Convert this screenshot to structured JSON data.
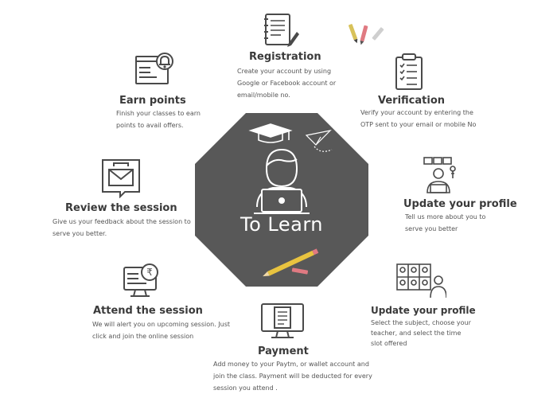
{
  "center": {
    "title": "To Learn",
    "fill": "#585858"
  },
  "steps": [
    {
      "id": "registration",
      "title": "Registration",
      "description": "Create your account by using Google or Facebook account or email/mobile no.",
      "icon": "notepad-pen-icon"
    },
    {
      "id": "verification",
      "title": "Verification",
      "description": "Verify your account by entering the OTP sent to your email or mobile No",
      "icon": "checklist-clipboard-icon"
    },
    {
      "id": "update-profile-1",
      "title": "Update your profile",
      "description": "Tell us more about you to serve you better",
      "icon": "user-laptop-icon"
    },
    {
      "id": "update-profile-2",
      "title": "Update your profile",
      "description": "Select the subject, choose your teacher, and select the time slot offered",
      "icon": "video-call-grid-icon"
    },
    {
      "id": "payment",
      "title": "Payment",
      "description": "Add money to your Paytm, or wallet account and join the class. Payment will be deducted  for every session you attend .",
      "icon": "monitor-list-icon"
    },
    {
      "id": "attend-session",
      "title": "Attend the session",
      "description": "We will alert you on upcoming session. Just click and join the online session",
      "icon": "monitor-rupee-icon"
    },
    {
      "id": "review-session",
      "title": "Review the session",
      "description": "Give us your feedback about the session to serve you better.",
      "icon": "feedback-envelope-icon"
    },
    {
      "id": "earn-points",
      "title": "Earn points",
      "description": "Finish your classes to earn points to avail offers.",
      "icon": "browser-bell-icon"
    }
  ]
}
